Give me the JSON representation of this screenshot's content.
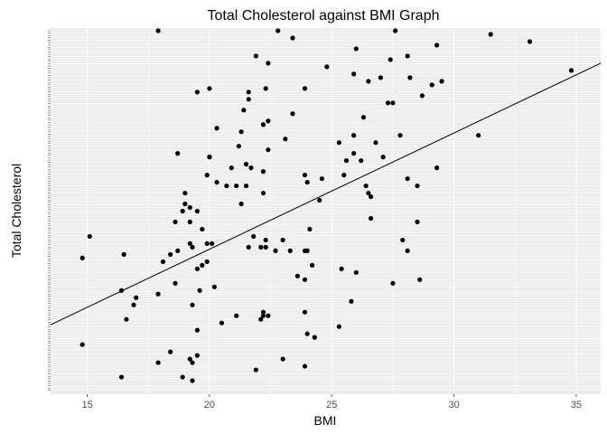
{
  "chart_data": {
    "type": "scatter",
    "title": "Total Cholesterol against BMI Graph",
    "xlabel": "BMI",
    "ylabel": "Total Cholesterol",
    "xlim": [
      13.5,
      36.0
    ],
    "ylim": [
      0,
      100
    ],
    "x_ticks": [
      15,
      20,
      25,
      30,
      35
    ],
    "y_axis_note": "discrete factor axis with overlapping, unreadable tick labels",
    "grid": true,
    "legend": "none",
    "colors": {
      "panel": "#ebebeb",
      "gridline": "#ffffff",
      "point": "#000000",
      "trend": "#000000",
      "tick_text": "#4d4d4d"
    },
    "trend_line": {
      "x": [
        13.5,
        36.0
      ],
      "y": [
        18.5,
        91.0
      ]
    },
    "points": [
      {
        "x": 17.9,
        "y": 100
      },
      {
        "x": 22.8,
        "y": 100
      },
      {
        "x": 27.6,
        "y": 100
      },
      {
        "x": 31.5,
        "y": 99
      },
      {
        "x": 23.4,
        "y": 98
      },
      {
        "x": 33.1,
        "y": 97
      },
      {
        "x": 29.3,
        "y": 96
      },
      {
        "x": 26.0,
        "y": 95
      },
      {
        "x": 21.9,
        "y": 93
      },
      {
        "x": 28.1,
        "y": 93
      },
      {
        "x": 27.4,
        "y": 92
      },
      {
        "x": 22.4,
        "y": 91
      },
      {
        "x": 24.8,
        "y": 90
      },
      {
        "x": 34.8,
        "y": 89
      },
      {
        "x": 25.9,
        "y": 88
      },
      {
        "x": 27.0,
        "y": 87
      },
      {
        "x": 28.2,
        "y": 87
      },
      {
        "x": 26.5,
        "y": 86
      },
      {
        "x": 29.5,
        "y": 86
      },
      {
        "x": 29.1,
        "y": 85
      },
      {
        "x": 20.0,
        "y": 84
      },
      {
        "x": 22.3,
        "y": 84
      },
      {
        "x": 23.9,
        "y": 84
      },
      {
        "x": 19.5,
        "y": 83
      },
      {
        "x": 21.6,
        "y": 83
      },
      {
        "x": 28.7,
        "y": 82
      },
      {
        "x": 21.6,
        "y": 81
      },
      {
        "x": 27.3,
        "y": 80
      },
      {
        "x": 27.5,
        "y": 80
      },
      {
        "x": 21.4,
        "y": 78
      },
      {
        "x": 23.4,
        "y": 77
      },
      {
        "x": 26.3,
        "y": 76
      },
      {
        "x": 22.4,
        "y": 75
      },
      {
        "x": 22.2,
        "y": 74
      },
      {
        "x": 20.3,
        "y": 73
      },
      {
        "x": 21.3,
        "y": 72
      },
      {
        "x": 25.9,
        "y": 71
      },
      {
        "x": 25.9,
        "y": 71
      },
      {
        "x": 27.8,
        "y": 71
      },
      {
        "x": 31.0,
        "y": 71
      },
      {
        "x": 23.1,
        "y": 70
      },
      {
        "x": 25.3,
        "y": 69
      },
      {
        "x": 26.8,
        "y": 69
      },
      {
        "x": 21.2,
        "y": 68
      },
      {
        "x": 22.4,
        "y": 67
      },
      {
        "x": 18.7,
        "y": 66
      },
      {
        "x": 25.9,
        "y": 66
      },
      {
        "x": 20.0,
        "y": 65
      },
      {
        "x": 20.0,
        "y": 65
      },
      {
        "x": 27.1,
        "y": 65
      },
      {
        "x": 25.6,
        "y": 64
      },
      {
        "x": 26.2,
        "y": 64
      },
      {
        "x": 21.5,
        "y": 63
      },
      {
        "x": 20.9,
        "y": 62
      },
      {
        "x": 21.7,
        "y": 62
      },
      {
        "x": 29.3,
        "y": 62
      },
      {
        "x": 22.2,
        "y": 61
      },
      {
        "x": 19.9,
        "y": 60
      },
      {
        "x": 23.9,
        "y": 60
      },
      {
        "x": 25.5,
        "y": 60
      },
      {
        "x": 24.6,
        "y": 59
      },
      {
        "x": 28.1,
        "y": 59
      },
      {
        "x": 20.3,
        "y": 58
      },
      {
        "x": 24.0,
        "y": 58
      },
      {
        "x": 28.5,
        "y": 57
      },
      {
        "x": 20.7,
        "y": 57
      },
      {
        "x": 21.1,
        "y": 57
      },
      {
        "x": 21.5,
        "y": 57
      },
      {
        "x": 26.4,
        "y": 57
      },
      {
        "x": 26.5,
        "y": 55
      },
      {
        "x": 19.0,
        "y": 55
      },
      {
        "x": 22.2,
        "y": 55
      },
      {
        "x": 26.6,
        "y": 54
      },
      {
        "x": 24.5,
        "y": 53
      },
      {
        "x": 19.0,
        "y": 52
      },
      {
        "x": 21.3,
        "y": 52
      },
      {
        "x": 19.2,
        "y": 51
      },
      {
        "x": 19.5,
        "y": 50
      },
      {
        "x": 18.9,
        "y": 50
      },
      {
        "x": 26.6,
        "y": 48
      },
      {
        "x": 18.6,
        "y": 47
      },
      {
        "x": 19.2,
        "y": 47
      },
      {
        "x": 28.5,
        "y": 47
      },
      {
        "x": 19.7,
        "y": 45
      },
      {
        "x": 24.1,
        "y": 45
      },
      {
        "x": 15.1,
        "y": 43
      },
      {
        "x": 21.8,
        "y": 43
      },
      {
        "x": 27.9,
        "y": 42
      },
      {
        "x": 22.3,
        "y": 42
      },
      {
        "x": 23.0,
        "y": 42
      },
      {
        "x": 19.2,
        "y": 41
      },
      {
        "x": 19.9,
        "y": 41
      },
      {
        "x": 20.1,
        "y": 41
      },
      {
        "x": 21.6,
        "y": 40
      },
      {
        "x": 22.1,
        "y": 40
      },
      {
        "x": 22.3,
        "y": 40
      },
      {
        "x": 23.3,
        "y": 39
      },
      {
        "x": 23.9,
        "y": 39
      },
      {
        "x": 24.0,
        "y": 39
      },
      {
        "x": 22.7,
        "y": 39
      },
      {
        "x": 19.3,
        "y": 40
      },
      {
        "x": 18.7,
        "y": 39
      },
      {
        "x": 28.1,
        "y": 39
      },
      {
        "x": 18.4,
        "y": 38
      },
      {
        "x": 16.5,
        "y": 38
      },
      {
        "x": 14.8,
        "y": 37
      },
      {
        "x": 18.1,
        "y": 36
      },
      {
        "x": 19.9,
        "y": 36
      },
      {
        "x": 19.7,
        "y": 35
      },
      {
        "x": 19.5,
        "y": 34
      },
      {
        "x": 24.2,
        "y": 35
      },
      {
        "x": 25.4,
        "y": 34
      },
      {
        "x": 23.6,
        "y": 32
      },
      {
        "x": 26.0,
        "y": 33
      },
      {
        "x": 23.9,
        "y": 31
      },
      {
        "x": 27.5,
        "y": 30
      },
      {
        "x": 18.6,
        "y": 30
      },
      {
        "x": 20.2,
        "y": 29
      },
      {
        "x": 28.6,
        "y": 31
      },
      {
        "x": 16.4,
        "y": 28
      },
      {
        "x": 19.6,
        "y": 28
      },
      {
        "x": 17.0,
        "y": 26
      },
      {
        "x": 17.9,
        "y": 27
      },
      {
        "x": 25.8,
        "y": 25
      },
      {
        "x": 16.9,
        "y": 24
      },
      {
        "x": 19.3,
        "y": 24
      },
      {
        "x": 22.2,
        "y": 22
      },
      {
        "x": 23.9,
        "y": 22
      },
      {
        "x": 16.6,
        "y": 20
      },
      {
        "x": 21.1,
        "y": 21
      },
      {
        "x": 22.1,
        "y": 20
      },
      {
        "x": 22.2,
        "y": 21
      },
      {
        "x": 22.4,
        "y": 21
      },
      {
        "x": 20.5,
        "y": 19
      },
      {
        "x": 25.3,
        "y": 18
      },
      {
        "x": 19.5,
        "y": 17
      },
      {
        "x": 24.0,
        "y": 16
      },
      {
        "x": 24.3,
        "y": 15
      },
      {
        "x": 14.8,
        "y": 13
      },
      {
        "x": 18.4,
        "y": 11
      },
      {
        "x": 19.5,
        "y": 10
      },
      {
        "x": 19.2,
        "y": 9
      },
      {
        "x": 17.9,
        "y": 8
      },
      {
        "x": 19.3,
        "y": 8
      },
      {
        "x": 23.0,
        "y": 9
      },
      {
        "x": 21.9,
        "y": 6
      },
      {
        "x": 23.9,
        "y": 7
      },
      {
        "x": 16.4,
        "y": 4
      },
      {
        "x": 19.3,
        "y": 3
      },
      {
        "x": 18.9,
        "y": 4
      }
    ]
  }
}
